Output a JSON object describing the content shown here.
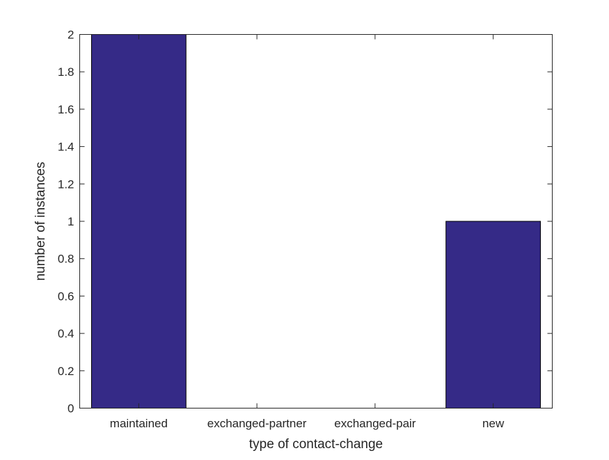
{
  "chart_data": {
    "type": "bar",
    "categories": [
      "maintained",
      "exchanged-partner",
      "exchanged-pair",
      "new"
    ],
    "values": [
      2,
      0,
      0,
      1
    ],
    "title": "",
    "xlabel": "type of contact-change",
    "ylabel": "number of instances",
    "ylim": [
      0,
      2
    ],
    "yticks": [
      "0",
      "0.2",
      "0.4",
      "0.6",
      "0.8",
      "1",
      "1.2",
      "1.4",
      "1.6",
      "1.8",
      "2"
    ],
    "grid": false,
    "bar_color": "#352a87",
    "bar_edge_color": "#000000"
  }
}
